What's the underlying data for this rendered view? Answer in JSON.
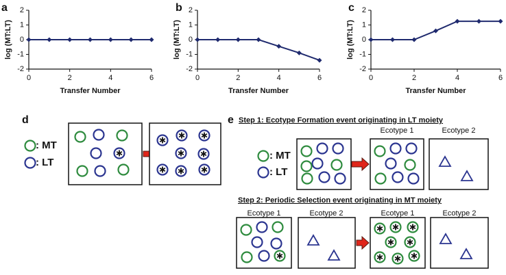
{
  "chart_data": [
    {
      "type": "line",
      "panel": "a",
      "ylabel": "log (MT:LT)",
      "xlabel": "Transfer Number",
      "x": [
        0,
        1,
        2,
        3,
        4,
        5,
        6
      ],
      "series": [
        {
          "color": "#1f2a6e",
          "values": [
            0,
            0,
            0,
            0,
            0,
            0,
            0
          ]
        }
      ],
      "xlim": [
        0,
        6
      ],
      "ylim": [
        -2,
        2
      ],
      "xticks": [
        0,
        2,
        4,
        6
      ],
      "yticks": [
        -2,
        -1,
        0,
        1,
        2
      ]
    },
    {
      "type": "line",
      "panel": "b",
      "ylabel": "log (MT:LT)",
      "xlabel": "Transfer Number",
      "x": [
        0,
        1,
        2,
        3,
        4,
        5,
        6
      ],
      "series": [
        {
          "color": "#1f2a6e",
          "values": [
            0,
            0,
            0,
            0,
            -0.45,
            -0.9,
            -1.4
          ]
        }
      ],
      "xlim": [
        0,
        6
      ],
      "ylim": [
        -2,
        2
      ],
      "xticks": [
        0,
        2,
        4,
        6
      ],
      "yticks": [
        -2,
        -1,
        0,
        1,
        2
      ]
    },
    {
      "type": "line",
      "panel": "c",
      "ylabel": "log (MT:LT)",
      "xlabel": "Transfer Number",
      "x": [
        0,
        1,
        2,
        3,
        4,
        5,
        6
      ],
      "series": [
        {
          "color": "#1f2a6e",
          "values": [
            0,
            0,
            0,
            0.6,
            1.25,
            1.25,
            1.25
          ]
        }
      ],
      "xlim": [
        0,
        6
      ],
      "ylim": [
        -2,
        2
      ],
      "xticks": [
        0,
        2,
        4,
        6
      ],
      "yticks": [
        -2,
        -1,
        0,
        1,
        2
      ]
    }
  ],
  "diagrams": {
    "d": {
      "label": "d",
      "legend": [
        ": MT",
        ": LT"
      ]
    },
    "e": {
      "label": "e",
      "step1": "Step 1: Ecotype Formation event originating in LT moiety",
      "step1_legend": [
        ": MT",
        ": LT"
      ],
      "step1_boxes": [
        "Ecotype 1",
        "Ecotype 2"
      ],
      "step2": "Step 2: Periodic Selection event originating in MT moiety",
      "step2_boxes": [
        "Ecotype 1",
        "Ecotype 2",
        "Ecotype 1",
        "Ecotype 2"
      ]
    }
  }
}
